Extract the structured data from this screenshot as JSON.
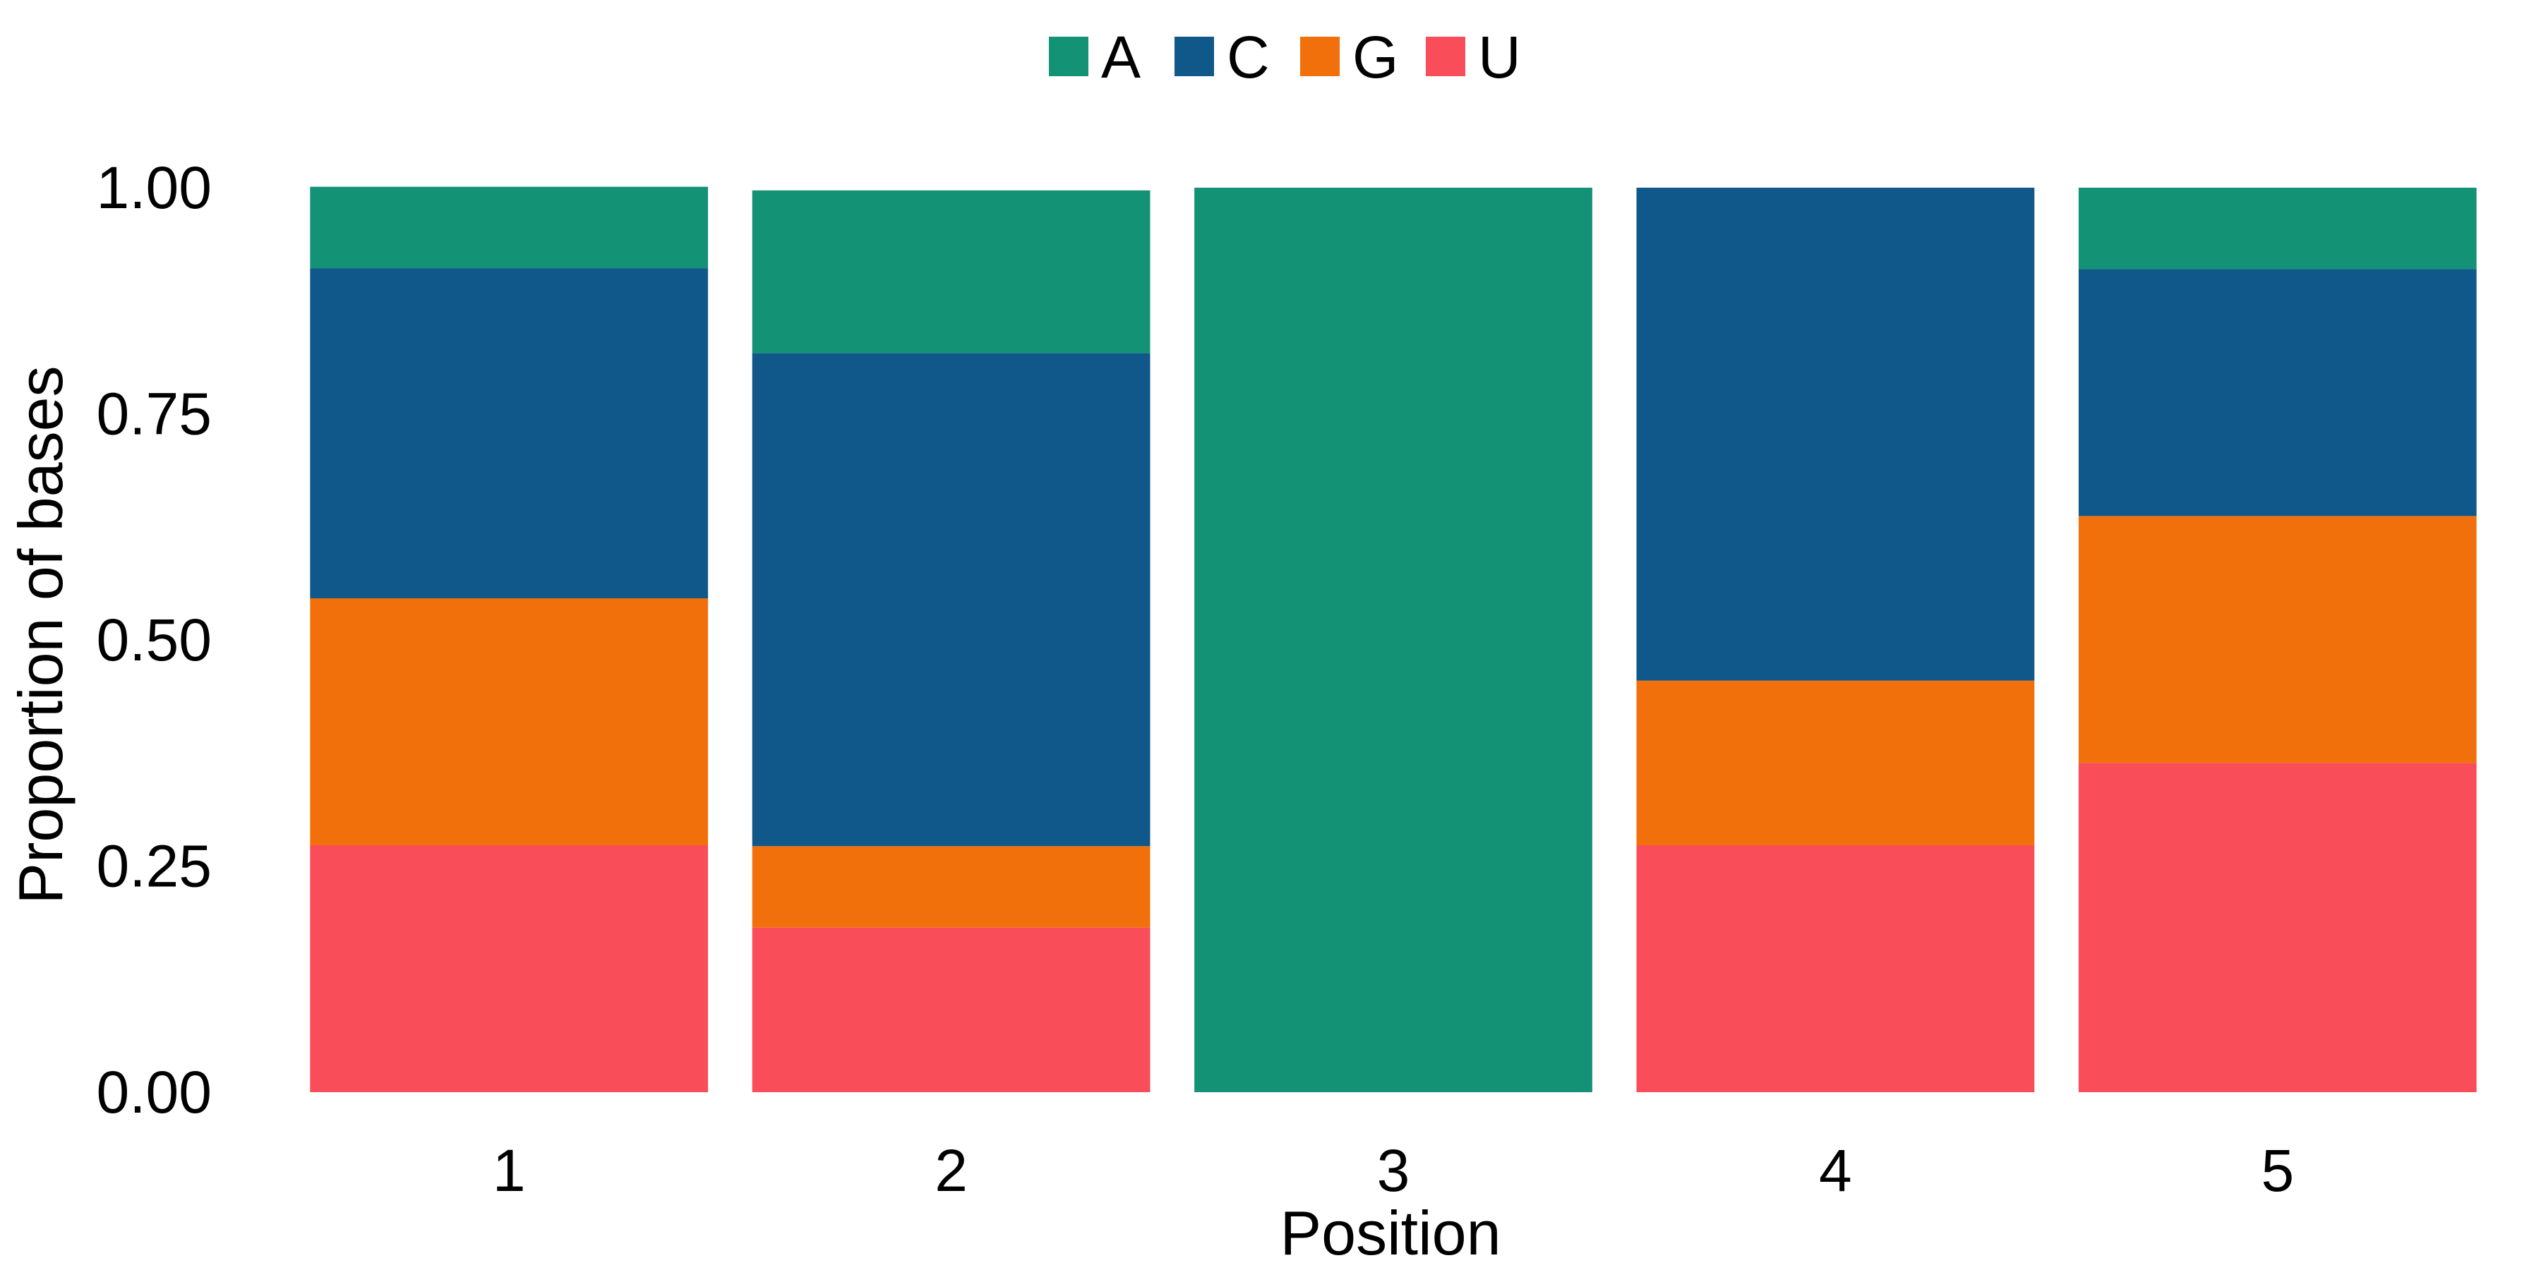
{
  "chart_data": {
    "type": "bar",
    "stacked": true,
    "title": "",
    "xlabel": "Position",
    "ylabel": "Proportion of bases",
    "categories": [
      "1",
      "2",
      "3",
      "4",
      "5"
    ],
    "ylim": [
      0,
      1
    ],
    "yticks": [
      "0.00",
      "0.25",
      "0.50",
      "0.75",
      "1.00"
    ],
    "grid": false,
    "legend": {
      "position": "top",
      "entries": [
        "A",
        "C",
        "G",
        "U"
      ]
    },
    "stack_order_bottom_to_top": [
      "U",
      "G",
      "C",
      "A"
    ],
    "series": [
      {
        "name": "A",
        "color": "#139276",
        "values": [
          0.09,
          0.18,
          1.0,
          0.0,
          0.09
        ]
      },
      {
        "name": "C",
        "color": "#10578A",
        "values": [
          0.365,
          0.545,
          0.0,
          0.545,
          0.273
        ]
      },
      {
        "name": "G",
        "color": "#F2700B",
        "values": [
          0.273,
          0.09,
          0.0,
          0.182,
          0.273
        ]
      },
      {
        "name": "U",
        "color": "#F94D59",
        "values": [
          0.273,
          0.182,
          0.0,
          0.273,
          0.364
        ]
      }
    ]
  }
}
